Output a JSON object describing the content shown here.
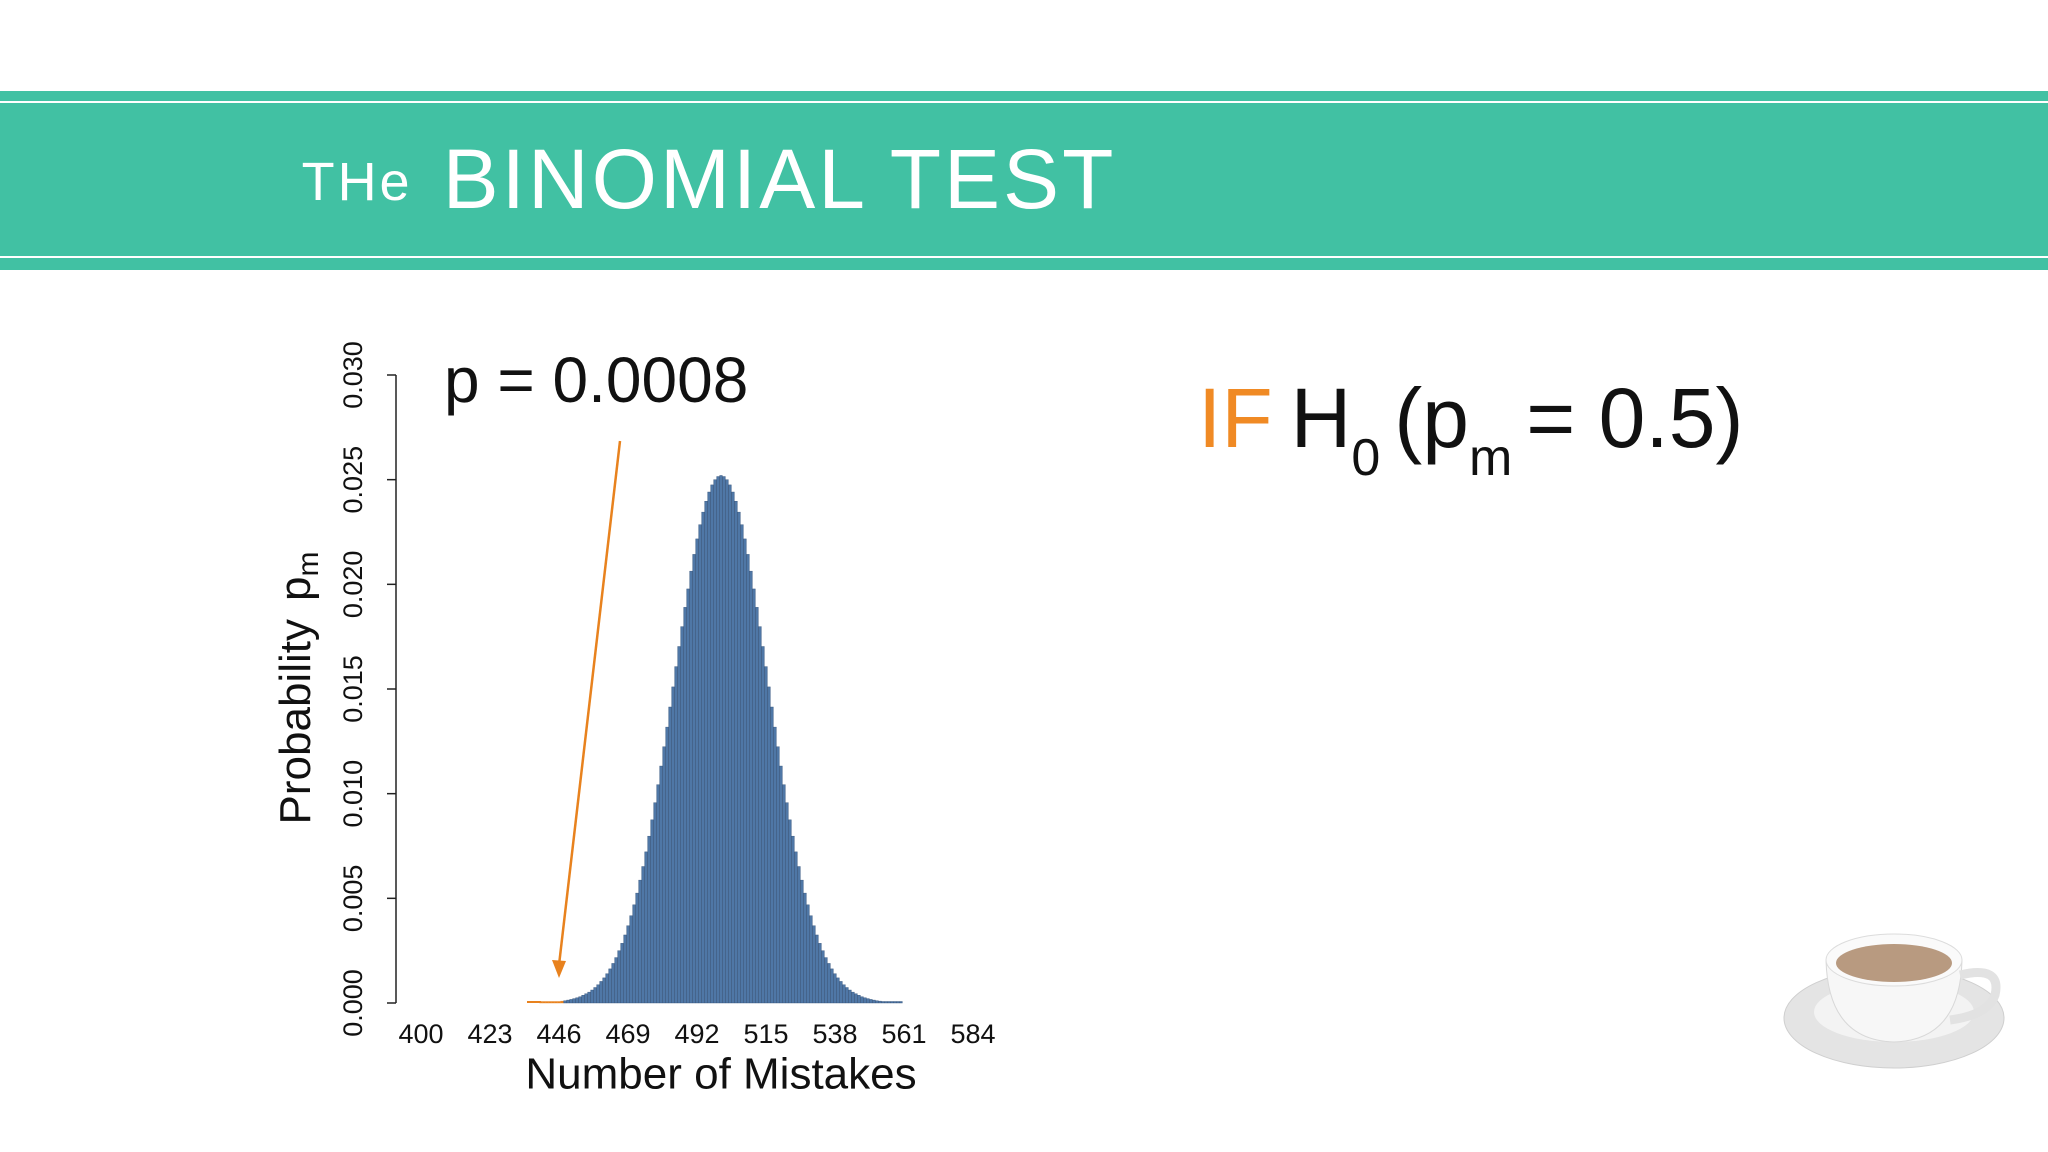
{
  "header": {
    "title_prefix": "THe",
    "title": "BINOMIAL TEST"
  },
  "hypothesis": {
    "keyword": "IF",
    "symbol": "H",
    "symbol_sub": "0",
    "open": "(p",
    "open_sub": "m",
    "rest": "= 0.5)"
  },
  "chart_data": {
    "type": "bar",
    "annotation": "p = 0.0008",
    "x_label": "Number of Mistakes",
    "y_label": "Probability",
    "y_label_symbol": "p",
    "y_label_sub": "m",
    "xlim": [
      400,
      584
    ],
    "xticks": [
      400,
      423,
      446,
      469,
      492,
      515,
      538,
      561,
      584
    ],
    "ylim": [
      0,
      0.03
    ],
    "yticks": [
      {
        "value": 0,
        "label": "0.000"
      },
      {
        "value": 0.005,
        "label": "0.005"
      },
      {
        "value": 0.01,
        "label": "0.010"
      },
      {
        "value": 0.015,
        "label": "0.015"
      },
      {
        "value": 0.02,
        "label": "0.020"
      },
      {
        "value": 0.025,
        "label": "0.025"
      },
      {
        "value": 0.03,
        "label": "0.030"
      }
    ],
    "series": [
      {
        "color": "#e8821e",
        "x": [
          440,
          441,
          442,
          443,
          444,
          445,
          446,
          447
        ],
        "values": [
          2e-05,
          2e-05,
          3e-05,
          4e-05,
          5e-05,
          6e-05,
          7e-05,
          9e-05
        ]
      },
      {
        "color": "#4f77a6",
        "x": [
          448,
          449,
          450,
          451,
          452,
          453,
          454,
          455,
          456,
          457,
          458,
          459,
          460,
          461,
          462,
          463,
          464,
          465,
          466,
          467,
          468,
          469,
          470,
          471,
          472,
          473,
          474,
          475,
          476,
          477,
          478,
          479,
          480,
          481,
          482,
          483,
          484,
          485,
          486,
          487,
          488,
          489,
          490,
          491,
          492,
          493,
          494,
          495,
          496,
          497,
          498,
          499,
          500,
          501,
          502,
          503,
          504,
          505,
          506,
          507,
          508,
          509,
          510,
          511,
          512,
          513,
          514,
          515,
          516,
          517,
          518,
          519,
          520,
          521,
          522,
          523,
          524,
          525,
          526,
          527,
          528,
          529,
          530,
          531,
          532,
          533,
          534,
          535,
          536,
          537,
          538,
          539,
          540,
          541,
          542,
          543,
          544,
          545,
          546,
          547,
          548,
          549,
          550,
          551,
          552,
          553,
          554,
          555,
          556,
          557,
          558,
          559,
          560
        ],
        "values": [
          0.00011,
          0.00014,
          0.00017,
          0.00021,
          0.00025,
          0.0003,
          0.00037,
          0.00044,
          0.00052,
          0.00062,
          0.00074,
          0.00087,
          0.00103,
          0.0012,
          0.0014,
          0.00163,
          0.00189,
          0.00217,
          0.0025,
          0.00285,
          0.00325,
          0.00369,
          0.00417,
          0.00469,
          0.00525,
          0.00587,
          0.00652,
          0.00722,
          0.00797,
          0.00875,
          0.00957,
          0.01043,
          0.01132,
          0.01224,
          0.01318,
          0.01414,
          0.0151,
          0.01607,
          0.01703,
          0.01798,
          0.0189,
          0.01978,
          0.02063,
          0.02143,
          0.02217,
          0.02285,
          0.02345,
          0.02397,
          0.02441,
          0.02475,
          0.025,
          0.02515,
          0.0252,
          0.02515,
          0.025,
          0.02475,
          0.02441,
          0.02397,
          0.02345,
          0.02285,
          0.02217,
          0.02143,
          0.02063,
          0.01978,
          0.0189,
          0.01798,
          0.01703,
          0.01607,
          0.0151,
          0.01414,
          0.01318,
          0.01224,
          0.01132,
          0.01043,
          0.00957,
          0.00875,
          0.00797,
          0.00722,
          0.00652,
          0.00587,
          0.00525,
          0.00469,
          0.00417,
          0.00369,
          0.00325,
          0.00285,
          0.0025,
          0.00217,
          0.00189,
          0.00163,
          0.0014,
          0.0012,
          0.00103,
          0.00087,
          0.00074,
          0.00062,
          0.00052,
          0.00044,
          0.00037,
          0.0003,
          0.00025,
          0.00021,
          0.00017,
          0.00014,
          0.00011,
          9e-05,
          7e-05,
          6e-05,
          5e-05,
          4e-05,
          3e-05,
          2e-05,
          2e-05
        ]
      }
    ]
  }
}
